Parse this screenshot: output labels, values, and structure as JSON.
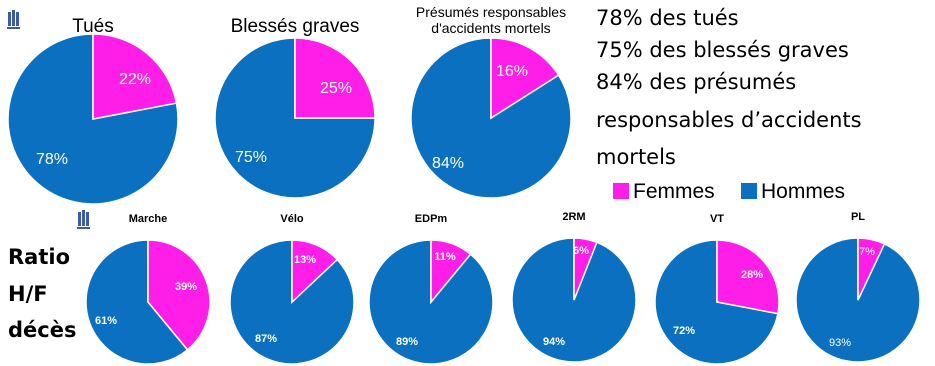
{
  "colors": {
    "femmes": "#ff1ee8",
    "hommes": "#0a70bf",
    "label": "#ffffff",
    "label_muted": "#d8e3f2",
    "logo": "#3d5aa8"
  },
  "logo_icon": "tower-building-icon",
  "summary_lines": [
    "78% des tués",
    "75% des blessés graves",
    "84% des présumés",
    "responsables d’accidents",
    "mortels"
  ],
  "legend": {
    "femmes": "Femmes",
    "hommes": "Hommes"
  },
  "ratio_label": [
    "Ratio",
    "H/F",
    "décès"
  ],
  "chart_data": [
    {
      "type": "pie",
      "title": [
        "Tués"
      ],
      "categories": [
        "Femmes",
        "Hommes"
      ],
      "values": [
        22,
        78
      ],
      "labels": [
        "22%",
        "78%"
      ]
    },
    {
      "type": "pie",
      "title": [
        "Blessés graves"
      ],
      "categories": [
        "Femmes",
        "Hommes"
      ],
      "values": [
        25,
        75
      ],
      "labels": [
        "25%",
        "75%"
      ]
    },
    {
      "type": "pie",
      "title": [
        "Présumés responsables",
        "d'accidents mortels"
      ],
      "categories": [
        "Femmes",
        "Hommes"
      ],
      "values": [
        16,
        84
      ],
      "labels": [
        "16%",
        "84%"
      ]
    },
    {
      "type": "pie",
      "title": [
        "Marche"
      ],
      "categories": [
        "Femmes",
        "Hommes"
      ],
      "values": [
        39,
        61
      ],
      "labels": [
        "39%",
        "61%"
      ]
    },
    {
      "type": "pie",
      "title": [
        "Vélo"
      ],
      "categories": [
        "Femmes",
        "Hommes"
      ],
      "values": [
        13,
        87
      ],
      "labels": [
        "13%",
        "87%"
      ]
    },
    {
      "type": "pie",
      "title": [
        "EDPm"
      ],
      "categories": [
        "Femmes",
        "Hommes"
      ],
      "values": [
        11,
        89
      ],
      "labels": [
        "11%",
        "89%"
      ]
    },
    {
      "type": "pie",
      "title": [
        "2RM"
      ],
      "categories": [
        "Femmes",
        "Hommes"
      ],
      "values": [
        6,
        94
      ],
      "labels": [
        "6%",
        "94%"
      ]
    },
    {
      "type": "pie",
      "title": [
        "VT"
      ],
      "categories": [
        "Femmes",
        "Hommes"
      ],
      "values": [
        28,
        72
      ],
      "labels": [
        "28%",
        "72%"
      ]
    },
    {
      "type": "pie",
      "title": [
        "PL"
      ],
      "categories": [
        "Femmes",
        "Hommes"
      ],
      "values": [
        7,
        93
      ],
      "labels": [
        "7%",
        "93%"
      ]
    }
  ]
}
